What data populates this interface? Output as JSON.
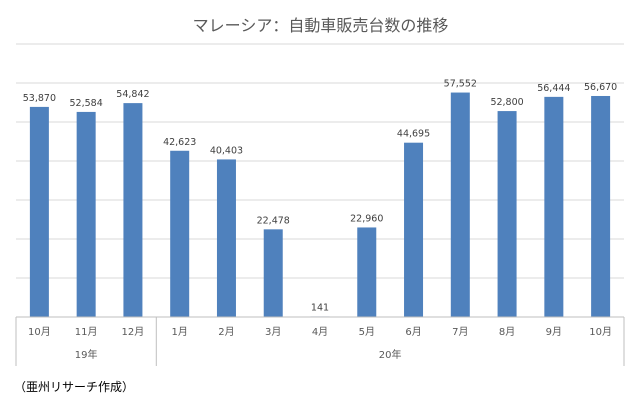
{
  "chart_data": {
    "type": "bar",
    "title": "マレーシア：自動車販売台数の推移",
    "categories": [
      "10月",
      "11月",
      "12月",
      "1月",
      "2月",
      "3月",
      "4月",
      "5月",
      "6月",
      "7月",
      "8月",
      "9月",
      "10月"
    ],
    "groups": [
      {
        "label": "19年",
        "count": 3
      },
      {
        "label": "20年",
        "count": 10
      }
    ],
    "values": [
      53870,
      52584,
      54842,
      42623,
      40403,
      22478,
      141,
      22960,
      44695,
      57552,
      52800,
      56444,
      56670
    ],
    "value_labels": [
      "53,870",
      "52,584",
      "54,842",
      "42,623",
      "40,403",
      "22,478",
      "141",
      "22,960",
      "44,695",
      "57,552",
      "52,800",
      "56,444",
      "56,670"
    ],
    "xlabel": "",
    "ylabel": "",
    "ylim": [
      0,
      70000
    ],
    "grid": true,
    "color": "#4f81bd"
  },
  "source": "（亜州リサーチ作成）"
}
